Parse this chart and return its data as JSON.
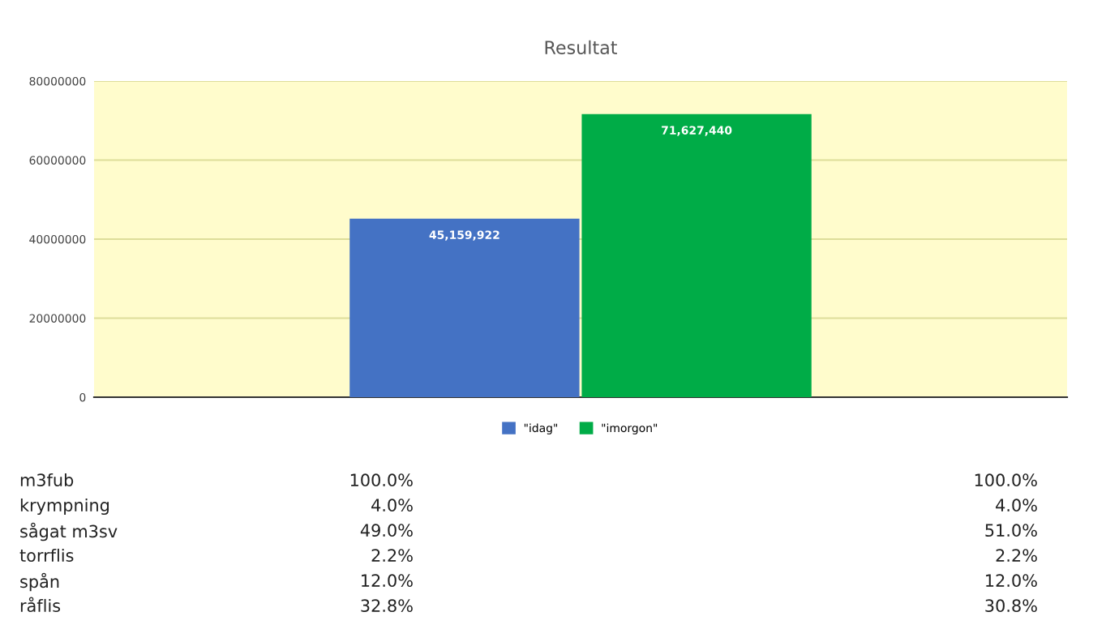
{
  "chart_data": {
    "type": "bar",
    "title": "Resultat",
    "categories": [
      null
    ],
    "series": [
      {
        "name": "\"idag\"",
        "color": "#4472c4",
        "values": [
          45159922
        ],
        "value_labels": [
          "45,159,922"
        ]
      },
      {
        "name": "\"imorgon\"",
        "color": "#00ac47",
        "values": [
          71627440
        ],
        "value_labels": [
          "71,627,440"
        ]
      }
    ],
    "ylim": [
      0,
      80000000
    ],
    "yticks": [
      0,
      20000000,
      40000000,
      60000000,
      80000000
    ],
    "grid": "y",
    "legend": "bottom",
    "annotations": [
      "m3fub",
      "100.0%",
      "100.0%",
      "krympning",
      "4.0%",
      "4.0%",
      "sågat m3sv",
      "49.0%",
      "51.0%",
      "torrflis",
      "2.2%",
      "2.2%",
      "spån",
      "12.0%",
      "12.0%",
      "råflis",
      "32.8%",
      "30.8%"
    ]
  }
}
